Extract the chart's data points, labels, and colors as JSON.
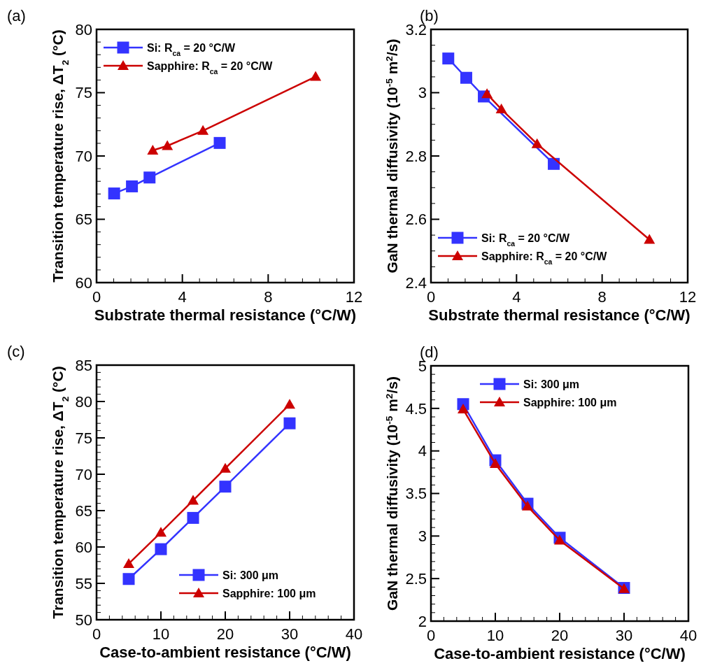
{
  "chart_data": [
    {
      "type": "line",
      "title": "(a)",
      "xlabel": "Substrate thermal resistance (°C/W)",
      "ylabel": "Transition temperature rise, ΔT$_{2}$ (°C)",
      "xlim": [
        0,
        12
      ],
      "ylim": [
        60,
        80
      ],
      "xticks": [
        0,
        {
          "value": 0.8,
          "label": null
        },
        {
          "value": 1.6,
          "label": null
        },
        {
          "value": 2.4,
          "label": null
        },
        {
          "value": 3.2,
          "label": null
        },
        4,
        {
          "value": 4.8,
          "label": null
        },
        {
          "value": 5.6,
          "label": null
        },
        {
          "value": 6.4,
          "label": null
        },
        {
          "value": 7.2,
          "label": null
        },
        8,
        {
          "value": 8.8,
          "label": null
        },
        {
          "value": 9.6,
          "label": null
        },
        {
          "value": 10.4,
          "label": null
        },
        {
          "value": 11.2,
          "label": null
        },
        12
      ],
      "yticks": [
        60,
        {
          "value": 61,
          "label": null
        },
        {
          "value": 62,
          "label": null
        },
        {
          "value": 63,
          "label": null
        },
        {
          "value": 64,
          "label": null
        },
        65,
        {
          "value": 66,
          "label": null
        },
        {
          "value": 67,
          "label": null
        },
        {
          "value": 68,
          "label": null
        },
        {
          "value": 69,
          "label": null
        },
        70,
        {
          "value": 71,
          "label": null
        },
        {
          "value": 72,
          "label": null
        },
        {
          "value": 73,
          "label": null
        },
        {
          "value": 74,
          "label": null
        },
        75,
        {
          "value": 76,
          "label": null
        },
        {
          "value": 77,
          "label": null
        },
        {
          "value": 78,
          "label": null
        },
        {
          "value": 79,
          "label": null
        },
        80
      ],
      "legend": "top left",
      "series": [
        {
          "name": "Si: R$_{ca}$ = 20 °C/W",
          "color": "#3333ff",
          "marker": "square",
          "x": [
            0.82,
            1.65,
            2.47,
            5.74
          ],
          "values": [
            67.04,
            67.6,
            68.3,
            71.03
          ]
        },
        {
          "name": "Sapphire: R$_{ca}$ = 20 °C/W",
          "color": "#cc0000",
          "marker": "triangle",
          "x": [
            2.62,
            3.3,
            4.96,
            10.21
          ],
          "values": [
            70.44,
            70.8,
            72.0,
            76.27
          ]
        }
      ]
    },
    {
      "type": "line",
      "title": "(b)",
      "xlabel": "Substrate thermal resistance (°C/W)",
      "ylabel": "GaN thermal diffusivity (10$^{-5}$ m$^{2}$/s)",
      "xlim": [
        0,
        12
      ],
      "ylim": [
        2.4,
        3.2
      ],
      "xticks": [
        0,
        {
          "value": 0.8,
          "label": null
        },
        {
          "value": 1.6,
          "label": null
        },
        {
          "value": 2.4,
          "label": null
        },
        {
          "value": 3.2,
          "label": null
        },
        4,
        {
          "value": 4.8,
          "label": null
        },
        {
          "value": 5.6,
          "label": null
        },
        {
          "value": 6.4,
          "label": null
        },
        {
          "value": 7.2,
          "label": null
        },
        8,
        {
          "value": 8.8,
          "label": null
        },
        {
          "value": 9.6,
          "label": null
        },
        {
          "value": 10.4,
          "label": null
        },
        {
          "value": 11.2,
          "label": null
        },
        12
      ],
      "yticks": [
        2.4,
        {
          "value": 2.45,
          "label": null
        },
        {
          "value": 2.5,
          "label": null
        },
        {
          "value": 2.55,
          "label": null
        },
        2.6,
        {
          "value": 2.65,
          "label": null
        },
        {
          "value": 2.7,
          "label": null
        },
        {
          "value": 2.75,
          "label": null
        },
        2.8,
        {
          "value": 2.85,
          "label": null
        },
        {
          "value": 2.9,
          "label": null
        },
        {
          "value": 2.95,
          "label": null
        },
        3,
        {
          "value": 3.05,
          "label": null
        },
        {
          "value": 3.1,
          "label": null
        },
        {
          "value": 3.15,
          "label": null
        },
        3.2
      ],
      "legend": "bottom left",
      "series": [
        {
          "name": "Si: R$_{ca}$ = 20 °C/W",
          "color": "#3333ff",
          "marker": "square",
          "x": [
            0.81,
            1.65,
            2.47,
            5.74
          ],
          "values": [
            3.108,
            3.047,
            2.988,
            2.775
          ]
        },
        {
          "name": "Sapphire: R$_{ca}$ = 20 °C/W",
          "color": "#cc0000",
          "marker": "triangle",
          "x": [
            2.62,
            3.29,
            4.96,
            10.21
          ],
          "values": [
            2.996,
            2.948,
            2.838,
            2.536
          ]
        }
      ]
    },
    {
      "type": "line",
      "title": "(c)",
      "xlabel": "Case-to-ambient resistance (°C/W)",
      "ylabel": "Transition temperature rise, ΔT$_{2}$ (°C)",
      "xlim": [
        0,
        40
      ],
      "ylim": [
        50,
        85
      ],
      "xticks": [
        0,
        {
          "value": 2,
          "label": null
        },
        {
          "value": 4,
          "label": null
        },
        {
          "value": 6,
          "label": null
        },
        {
          "value": 8,
          "label": null
        },
        10,
        {
          "value": 12,
          "label": null
        },
        {
          "value": 14,
          "label": null
        },
        {
          "value": 16,
          "label": null
        },
        {
          "value": 18,
          "label": null
        },
        20,
        {
          "value": 22,
          "label": null
        },
        {
          "value": 24,
          "label": null
        },
        {
          "value": 26,
          "label": null
        },
        {
          "value": 28,
          "label": null
        },
        30,
        {
          "value": 32,
          "label": null
        },
        {
          "value": 34,
          "label": null
        },
        {
          "value": 36,
          "label": null
        },
        {
          "value": 38,
          "label": null
        },
        40
      ],
      "yticks": [
        50,
        {
          "value": 51,
          "label": null
        },
        {
          "value": 52,
          "label": null
        },
        {
          "value": 53,
          "label": null
        },
        {
          "value": 54,
          "label": null
        },
        55,
        {
          "value": 56,
          "label": null
        },
        {
          "value": 57,
          "label": null
        },
        {
          "value": 58,
          "label": null
        },
        {
          "value": 59,
          "label": null
        },
        60,
        {
          "value": 61,
          "label": null
        },
        {
          "value": 62,
          "label": null
        },
        {
          "value": 63,
          "label": null
        },
        {
          "value": 64,
          "label": null
        },
        65,
        {
          "value": 66,
          "label": null
        },
        {
          "value": 67,
          "label": null
        },
        {
          "value": 68,
          "label": null
        },
        {
          "value": 69,
          "label": null
        },
        70,
        {
          "value": 71,
          "label": null
        },
        {
          "value": 72,
          "label": null
        },
        {
          "value": 73,
          "label": null
        },
        {
          "value": 74,
          "label": null
        },
        75,
        {
          "value": 76,
          "label": null
        },
        {
          "value": 77,
          "label": null
        },
        {
          "value": 78,
          "label": null
        },
        {
          "value": 79,
          "label": null
        },
        80,
        {
          "value": 81,
          "label": null
        },
        {
          "value": 82,
          "label": null
        },
        {
          "value": 83,
          "label": null
        },
        {
          "value": 84,
          "label": null
        },
        85
      ],
      "legend": "bottom right",
      "series": [
        {
          "name": "Si: 300 μm",
          "color": "#3333ff",
          "marker": "square",
          "x": [
            5,
            10,
            15,
            20,
            30
          ],
          "values": [
            55.6,
            59.7,
            64.0,
            68.3,
            77.0
          ]
        },
        {
          "name": "Sapphire: 100 μm",
          "color": "#cc0000",
          "marker": "triangle",
          "x": [
            5,
            10,
            15,
            20,
            30
          ],
          "values": [
            57.7,
            62.0,
            66.4,
            70.8,
            79.6
          ]
        }
      ]
    },
    {
      "type": "line",
      "title": "(d)",
      "xlabel": "Case-to-ambient resistance (°C/W)",
      "ylabel": "GaN thermal diffusivity (10$^{-5}$ m$^{2}$/s)",
      "xlim": [
        0,
        40
      ],
      "ylim": [
        2,
        5
      ],
      "xticks": [
        0,
        {
          "value": 2,
          "label": null
        },
        {
          "value": 4,
          "label": null
        },
        {
          "value": 6,
          "label": null
        },
        {
          "value": 8,
          "label": null
        },
        10,
        {
          "value": 12,
          "label": null
        },
        {
          "value": 14,
          "label": null
        },
        {
          "value": 16,
          "label": null
        },
        {
          "value": 18,
          "label": null
        },
        20,
        {
          "value": 22,
          "label": null
        },
        {
          "value": 24,
          "label": null
        },
        {
          "value": 26,
          "label": null
        },
        {
          "value": 28,
          "label": null
        },
        30,
        {
          "value": 32,
          "label": null
        },
        {
          "value": 34,
          "label": null
        },
        {
          "value": 36,
          "label": null
        },
        {
          "value": 38,
          "label": null
        },
        40
      ],
      "yticks": [
        2,
        {
          "value": 2.1,
          "label": null
        },
        {
          "value": 2.2,
          "label": null
        },
        {
          "value": 2.3,
          "label": null
        },
        {
          "value": 2.4,
          "label": null
        },
        2.5,
        {
          "value": 2.6,
          "label": null
        },
        {
          "value": 2.7,
          "label": null
        },
        {
          "value": 2.8,
          "label": null
        },
        {
          "value": 2.9,
          "label": null
        },
        3,
        {
          "value": 3.1,
          "label": null
        },
        {
          "value": 3.2,
          "label": null
        },
        {
          "value": 3.3,
          "label": null
        },
        {
          "value": 3.4,
          "label": null
        },
        3.5,
        {
          "value": 3.6,
          "label": null
        },
        {
          "value": 3.7,
          "label": null
        },
        {
          "value": 3.8,
          "label": null
        },
        {
          "value": 3.9,
          "label": null
        },
        4,
        {
          "value": 4.1,
          "label": null
        },
        {
          "value": 4.2,
          "label": null
        },
        {
          "value": 4.3,
          "label": null
        },
        {
          "value": 4.4,
          "label": null
        },
        4.5,
        {
          "value": 4.6,
          "label": null
        },
        {
          "value": 4.7,
          "label": null
        },
        {
          "value": 4.8,
          "label": null
        },
        {
          "value": 4.9,
          "label": null
        },
        5
      ],
      "legend": "top",
      "series": [
        {
          "name": "Si: 300 μm",
          "color": "#3333ff",
          "marker": "square",
          "x": [
            5,
            10,
            15,
            20,
            30
          ],
          "values": [
            4.55,
            3.89,
            3.38,
            2.98,
            2.39
          ]
        },
        {
          "name": "Sapphire: 100 μm",
          "color": "#cc0000",
          "marker": "triangle",
          "x": [
            5,
            10,
            15,
            20,
            30
          ],
          "values": [
            4.49,
            3.85,
            3.35,
            2.95,
            2.38
          ]
        }
      ]
    }
  ]
}
